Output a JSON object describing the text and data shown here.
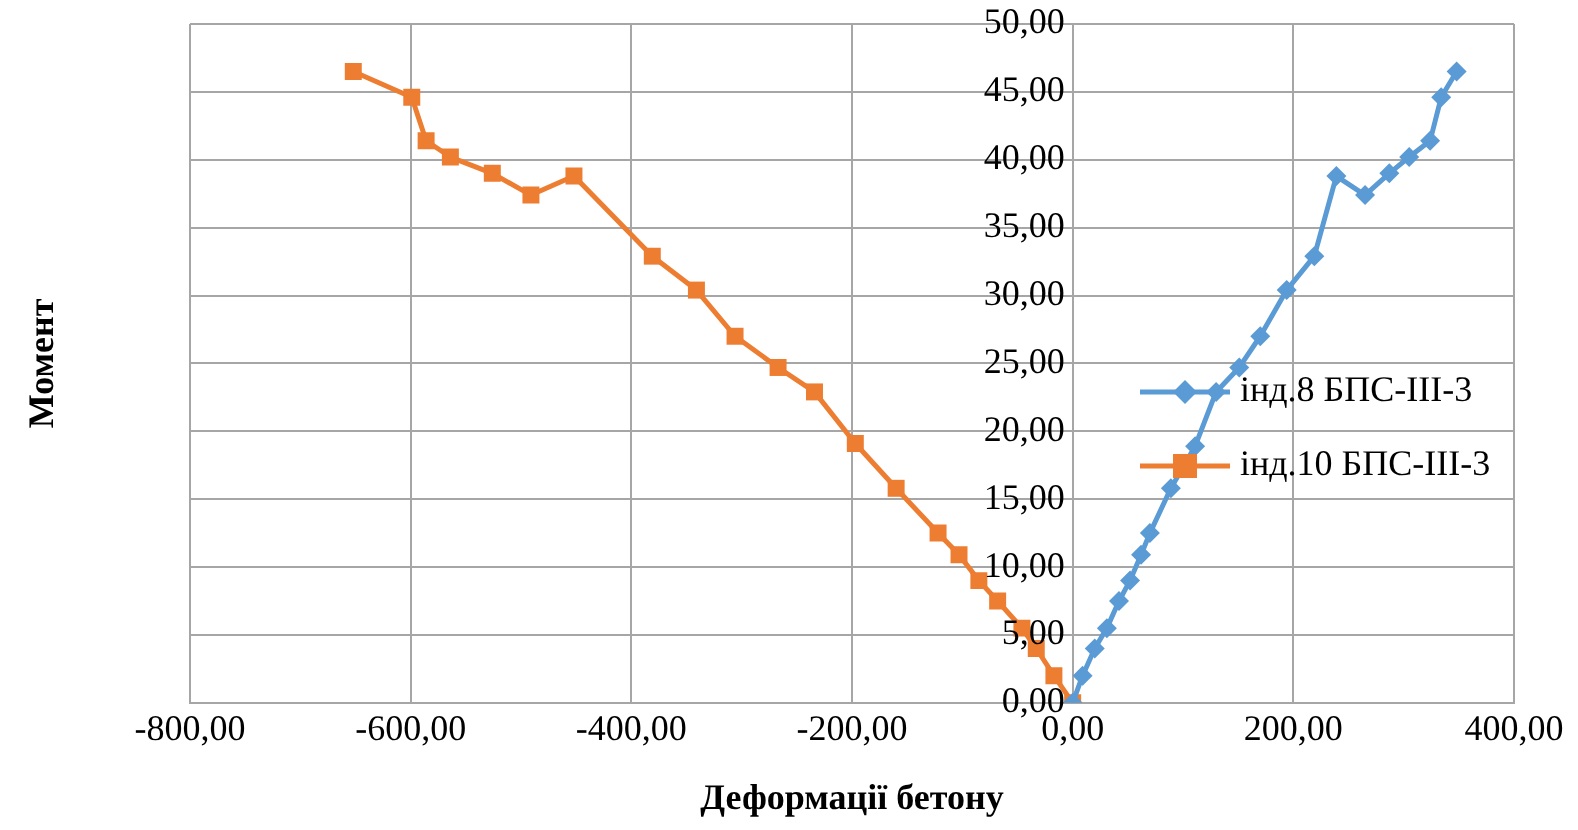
{
  "chart_data": {
    "type": "line",
    "xlabel": "Деформації бетону",
    "ylabel": "Момент",
    "xlim": [
      -800,
      400
    ],
    "xticks": [
      {
        "value": -800,
        "label": "-800,00"
      },
      {
        "value": -600,
        "label": "-600,00"
      },
      {
        "value": -400,
        "label": "-400,00"
      },
      {
        "value": -200,
        "label": "-200,00"
      },
      {
        "value": 0,
        "label": "0,00"
      },
      {
        "value": 200,
        "label": "200,00"
      },
      {
        "value": 400,
        "label": "400,00"
      }
    ],
    "ylim": [
      0,
      50
    ],
    "yticks": [
      {
        "value": 0,
        "label": "0,00"
      },
      {
        "value": 5,
        "label": "5,00"
      },
      {
        "value": 10,
        "label": "10,00"
      },
      {
        "value": 15,
        "label": "15,00"
      },
      {
        "value": 20,
        "label": "20,00"
      },
      {
        "value": 25,
        "label": "25,00"
      },
      {
        "value": 30,
        "label": "30,00"
      },
      {
        "value": 35,
        "label": "35,00"
      },
      {
        "value": 40,
        "label": "40,00"
      },
      {
        "value": 45,
        "label": "45,00"
      },
      {
        "value": 50,
        "label": "50,00"
      }
    ],
    "grid": true,
    "legend": "right",
    "line_style": "solid",
    "series": [
      {
        "name": "інд.8 БПС-ІІІ-3",
        "color": "#5b9bd5",
        "marker": "diamond",
        "x": [
          0,
          9,
          20,
          31,
          42,
          52,
          62,
          70,
          89,
          111,
          130,
          151,
          170,
          194,
          219,
          239,
          265,
          287,
          305,
          324,
          334,
          348
        ],
        "values": [
          0,
          2,
          4,
          5.5,
          7.5,
          9,
          10.9,
          12.5,
          15.8,
          18.9,
          22.9,
          24.7,
          27,
          30.4,
          32.9,
          38.8,
          37.4,
          39,
          40.2,
          41.4,
          44.6,
          46.5
        ]
      },
      {
        "name": "інд.10 БПС-ІІІ-3",
        "color": "#ed7d31",
        "marker": "square",
        "x": [
          0,
          -17,
          -33,
          -46,
          -68,
          -85,
          -103,
          -122,
          -160,
          -197,
          -234,
          -267,
          -306,
          -341,
          -381,
          -452,
          -491,
          -526,
          -564,
          -586,
          -599,
          -652
        ],
        "values": [
          0,
          2,
          4,
          5.5,
          7.5,
          9,
          10.9,
          12.5,
          15.8,
          19.1,
          22.9,
          24.7,
          27,
          30.4,
          32.9,
          38.8,
          37.4,
          39,
          40.2,
          41.4,
          44.6,
          46.5
        ]
      }
    ]
  }
}
